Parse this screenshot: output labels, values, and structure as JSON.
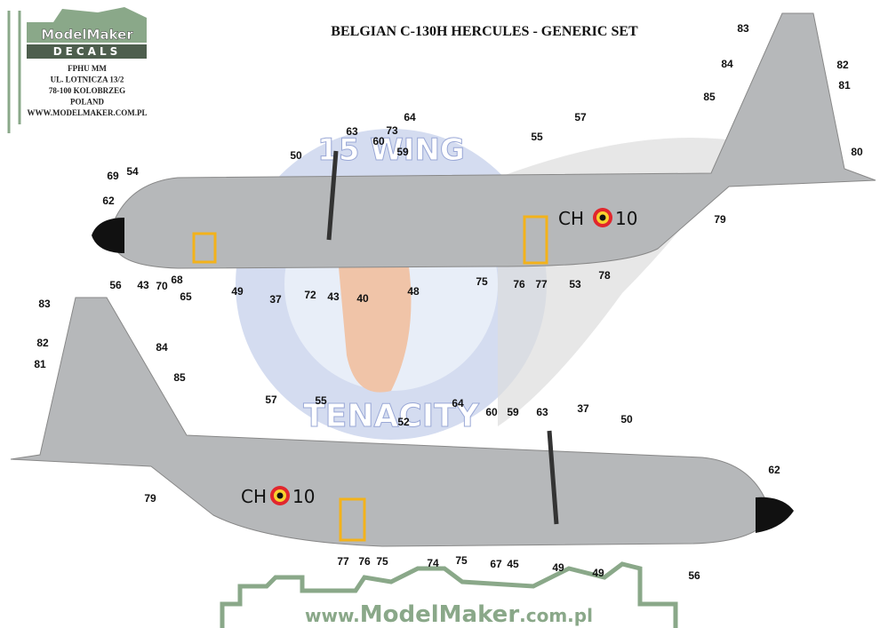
{
  "logo": {
    "brand": "ModelMaker",
    "sub": "DECALS"
  },
  "address": [
    "FPHU MM",
    "UL. LOTNICZA 13/2",
    "78-100 KOLOBRZEG",
    "POLAND",
    "WWW.MODELMAKER.COM.PL"
  ],
  "title": "BELGIAN C-130H HERCULES - GENERIC SET",
  "emblem": {
    "top": "15 WING",
    "bottom": "TENACITY"
  },
  "top_view": {
    "registration": {
      "letters": "CH",
      "number": "10"
    },
    "callouts": [
      "83",
      "84",
      "82",
      "81",
      "85",
      "80",
      "57",
      "55",
      "64",
      "63",
      "73",
      "60",
      "59",
      "50",
      "69",
      "54",
      "62",
      "79",
      "78",
      "53",
      "75",
      "76",
      "77",
      "48",
      "40",
      "43",
      "72",
      "37",
      "49",
      "56",
      "43",
      "70",
      "68",
      "65"
    ]
  },
  "bottom_view": {
    "registration": {
      "letters": "CH",
      "number": "10"
    },
    "callouts": [
      "83",
      "82",
      "81",
      "84",
      "85",
      "57",
      "55",
      "52",
      "64",
      "60",
      "59",
      "63",
      "37",
      "50",
      "62",
      "79",
      "77",
      "76",
      "75",
      "74",
      "75",
      "67",
      "45",
      "49",
      "49",
      "56"
    ]
  },
  "footer": {
    "prefix": "www.",
    "brand": "ModelMaker",
    "suffix": ".com.pl"
  }
}
